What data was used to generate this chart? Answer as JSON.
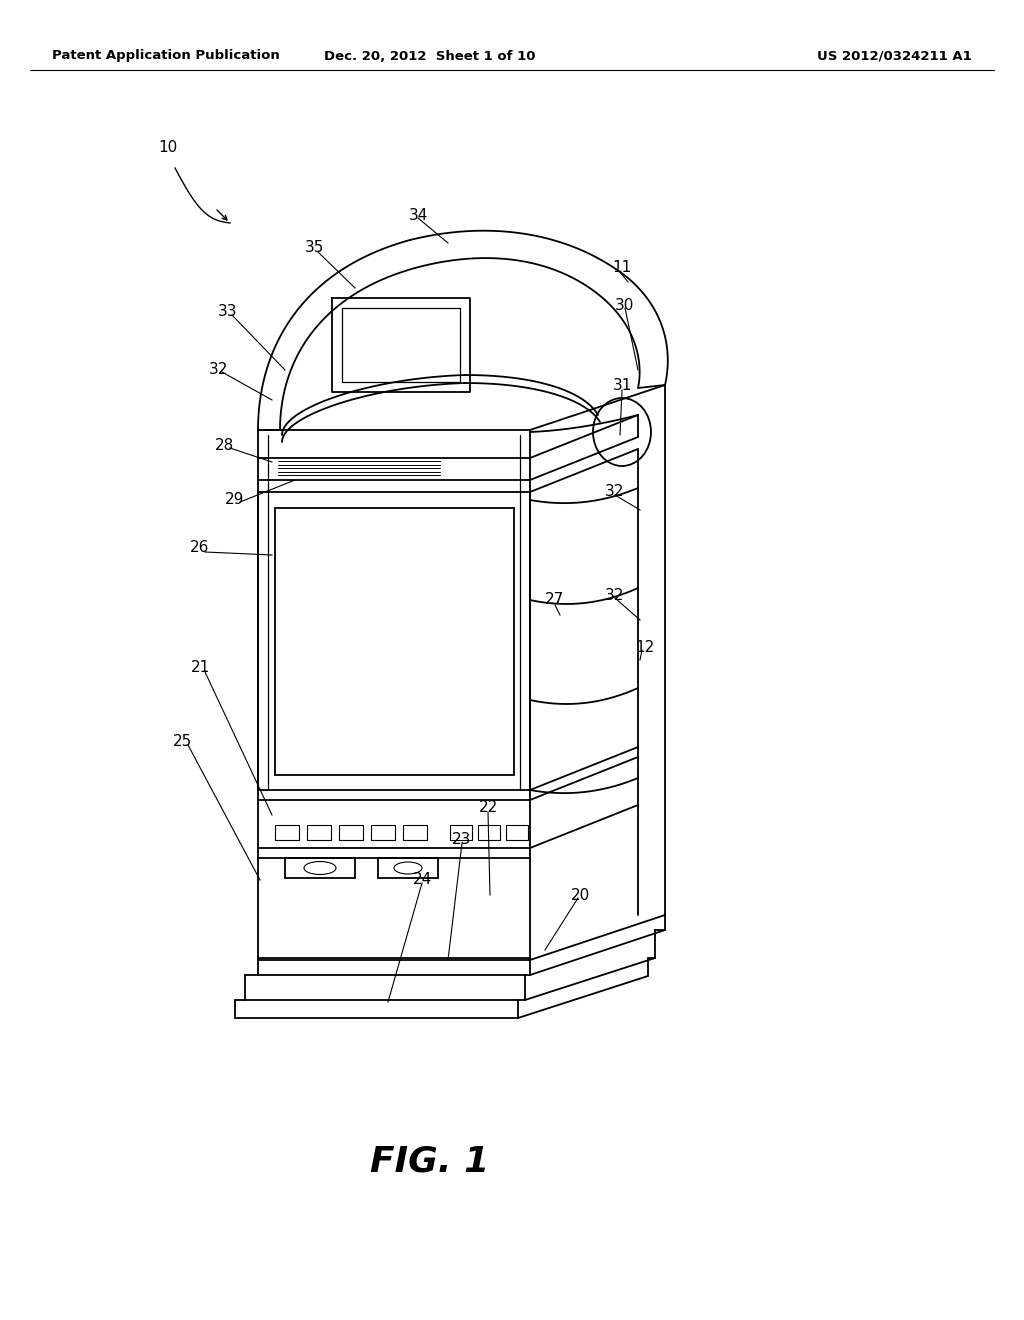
{
  "header_left": "Patent Application Publication",
  "header_center": "Dec. 20, 2012  Sheet 1 of 10",
  "header_right": "US 2012/0324211 A1",
  "figure_label": "FIG. 1",
  "bg": "#ffffff",
  "lc": "#000000"
}
